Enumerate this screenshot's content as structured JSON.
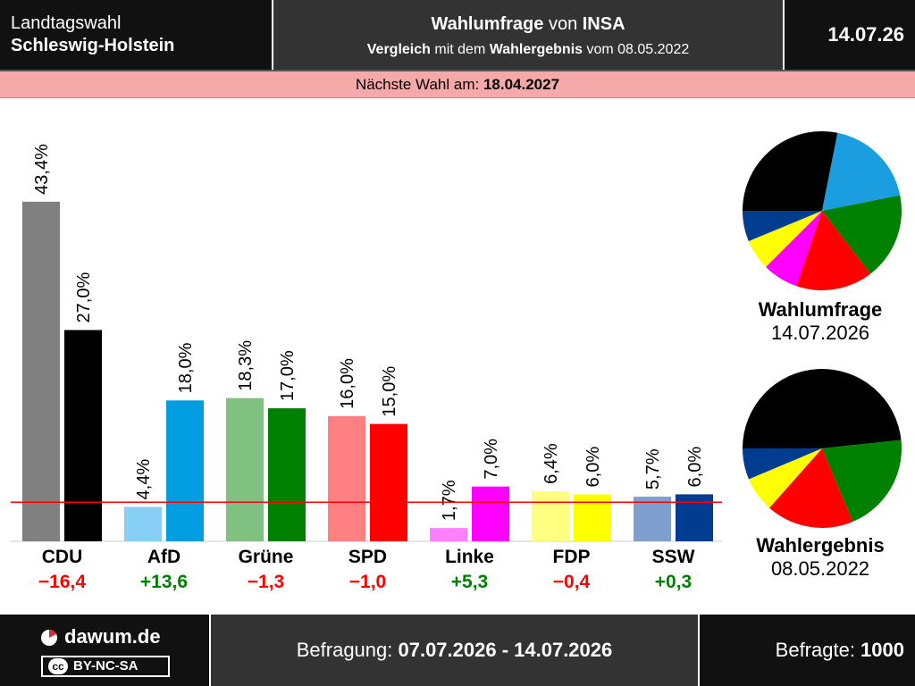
{
  "header": {
    "region_line1": "Landtagswahl",
    "region_line2": "Schleswig-Holstein",
    "title_bold": "Wahlumfrage",
    "title_mid": " von ",
    "institute": "INSA",
    "sub_bold1": "Vergleich",
    "sub_mid1": " mit dem ",
    "sub_bold2": "Wahlergebnis",
    "sub_mid2": " vom ",
    "sub_date": "08.05.2022",
    "date": "14.07.26"
  },
  "next_election": {
    "label": "Nächste Wahl am: ",
    "date": "18.04.2027"
  },
  "chart_data": {
    "type": "bar",
    "categories": [
      "CDU",
      "AfD",
      "Grüne",
      "SPD",
      "Linke",
      "FDP",
      "SSW"
    ],
    "series": [
      {
        "name": "Wahlergebnis 08.05.2022",
        "values": [
          43.4,
          4.4,
          18.3,
          16.0,
          1.7,
          6.4,
          5.7
        ],
        "labels": [
          "43,4%",
          "4,4%",
          "18,3%",
          "16,0%",
          "1,7%",
          "6,4%",
          "5,7%"
        ],
        "colors": [
          "#808080",
          "#87cef5",
          "#80c080",
          "#ff8080",
          "#ff80ff",
          "#ffff80",
          "#7f9fcf"
        ]
      },
      {
        "name": "Wahlumfrage 14.07.2026",
        "values": [
          27.0,
          18.0,
          17.0,
          15.0,
          7.0,
          6.0,
          6.0
        ],
        "labels": [
          "27,0%",
          "18,0%",
          "17,0%",
          "15,0%",
          "7,0%",
          "6,0%",
          "6,0%"
        ],
        "colors": [
          "#000000",
          "#009ee0",
          "#008000",
          "#ff0000",
          "#ff00ff",
          "#ffff00",
          "#003c8f"
        ]
      }
    ],
    "differences": [
      "−16,4",
      "+13,6",
      "−1,3",
      "−1,0",
      "+5,3",
      "−0,4",
      "+0,3"
    ],
    "difference_colors": [
      "#ff0000",
      "#008000",
      "#ff0000",
      "#ff0000",
      "#008000",
      "#ff0000",
      "#008000"
    ],
    "threshold": 5,
    "ylim": [
      0,
      45
    ],
    "pies": [
      {
        "title": "Wahlumfrage",
        "date": "14.07.2026",
        "order": [
          "CDU",
          "AfD",
          "Grüne",
          "SPD",
          "Linke",
          "FDP",
          "SSW"
        ],
        "values": [
          27.0,
          18.0,
          17.0,
          15.0,
          7.0,
          6.0,
          6.0
        ],
        "colors": [
          "#000000",
          "#1a9ee0",
          "#008000",
          "#ff0000",
          "#ff00ff",
          "#ffff00",
          "#003c8f"
        ]
      },
      {
        "title": "Wahlergebnis",
        "date": "08.05.2022",
        "order": [
          "CDU",
          "Grüne",
          "SPD",
          "FDP",
          "SSW"
        ],
        "values": [
          43.4,
          18.3,
          16.0,
          6.4,
          5.7
        ],
        "colors": [
          "#000000",
          "#008000",
          "#ff0000",
          "#ffff00",
          "#003c8f"
        ]
      }
    ]
  },
  "footer": {
    "brand": "dawum.de",
    "license": "BY-NC-SA",
    "license_mark": "cc",
    "survey_label": "Befragung: ",
    "survey_period": "07.07.2026 - 14.07.2026",
    "respondents_label": "Befragte: ",
    "respondents": "1000"
  }
}
